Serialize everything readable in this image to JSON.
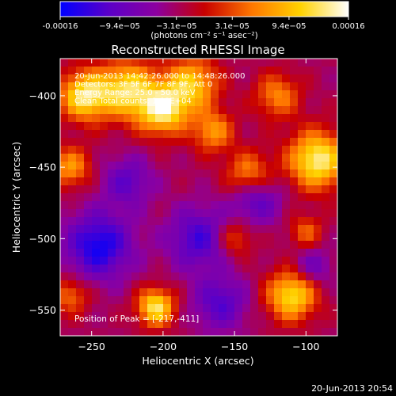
{
  "chart_data": {
    "type": "heatmap",
    "title": "Reconstructed RHESSI Image",
    "xlabel": "Heliocentric X (arcsec)",
    "ylabel": "Heliocentric Y (arcsec)",
    "xlim": [
      -272,
      -78
    ],
    "ylim": [
      -568,
      -374
    ],
    "x_ticks": [
      -250,
      -200,
      -150,
      -100
    ],
    "y_ticks": [
      -400,
      -450,
      -500,
      -550
    ],
    "colorbar": {
      "range": [
        -0.00016,
        0.00016
      ],
      "tick_values": [
        -0.00016,
        -9.4e-05,
        -3.1e-05,
        3.1e-05,
        9.4e-05,
        0.00016
      ],
      "tick_labels": [
        "-0.00016",
        "−9.4e−05",
        "−3.1e−05",
        "3.1e−05",
        "9.4e−05",
        "0.00016"
      ],
      "units": "(photons cm⁻² s⁻¹ asec⁻²)",
      "colors": [
        "#0000ff",
        "#5a00c8",
        "#8c00a0",
        "#c80000",
        "#ff7800",
        "#ffd200",
        "#ffffff"
      ]
    },
    "annotations": [
      "20-Jun-2013 14:42:26.000 to 14:48:26.000",
      "Detectors: 3F 5F 6F 7F 8F 9F, Att 0",
      "Energy Range: 25.0 - 50.0 keV",
      "Clean     Total counts: 1.03E+04"
    ],
    "peak_label": "Position of Peak = [-217,-411]",
    "peak_position": [
      -217,
      -411
    ],
    "blobs": [
      {
        "x": -255,
        "y": -400,
        "sigma": 12,
        "amp": 0.00016
      },
      {
        "x": -225,
        "y": -396,
        "sigma": 14,
        "amp": 0.00015
      },
      {
        "x": -200,
        "y": -410,
        "sigma": 12,
        "amp": 0.00016
      },
      {
        "x": -180,
        "y": -392,
        "sigma": 13,
        "amp": 0.00013
      },
      {
        "x": -165,
        "y": -425,
        "sigma": 10,
        "amp": 0.0001
      },
      {
        "x": -140,
        "y": -455,
        "sigma": 11,
        "amp": 0.0001
      },
      {
        "x": -92,
        "y": -445,
        "sigma": 14,
        "amp": 0.00017
      },
      {
        "x": -120,
        "y": -400,
        "sigma": 11,
        "amp": 9e-05
      },
      {
        "x": -265,
        "y": -450,
        "sigma": 10,
        "amp": 0.0001
      },
      {
        "x": -205,
        "y": -548,
        "sigma": 9,
        "amp": 0.00016
      },
      {
        "x": -110,
        "y": -540,
        "sigma": 12,
        "amp": 0.00015
      },
      {
        "x": -265,
        "y": -540,
        "sigma": 9,
        "amp": 8e-05
      },
      {
        "x": -150,
        "y": -500,
        "sigma": 9,
        "amp": 7e-05
      },
      {
        "x": -100,
        "y": -495,
        "sigma": 8,
        "amp": 7e-05
      },
      {
        "x": -245,
        "y": -505,
        "sigma": 16,
        "amp": -0.00012
      },
      {
        "x": -175,
        "y": -500,
        "sigma": 15,
        "amp": -9e-05
      },
      {
        "x": -135,
        "y": -472,
        "sigma": 12,
        "amp": -8e-05
      },
      {
        "x": -225,
        "y": -460,
        "sigma": 12,
        "amp": -7e-05
      },
      {
        "x": -160,
        "y": -545,
        "sigma": 13,
        "amp": -8e-05
      },
      {
        "x": -95,
        "y": -520,
        "sigma": 9,
        "amp": -6e-05
      }
    ]
  },
  "footer_timestamp": "20-Jun-2013 20:54"
}
